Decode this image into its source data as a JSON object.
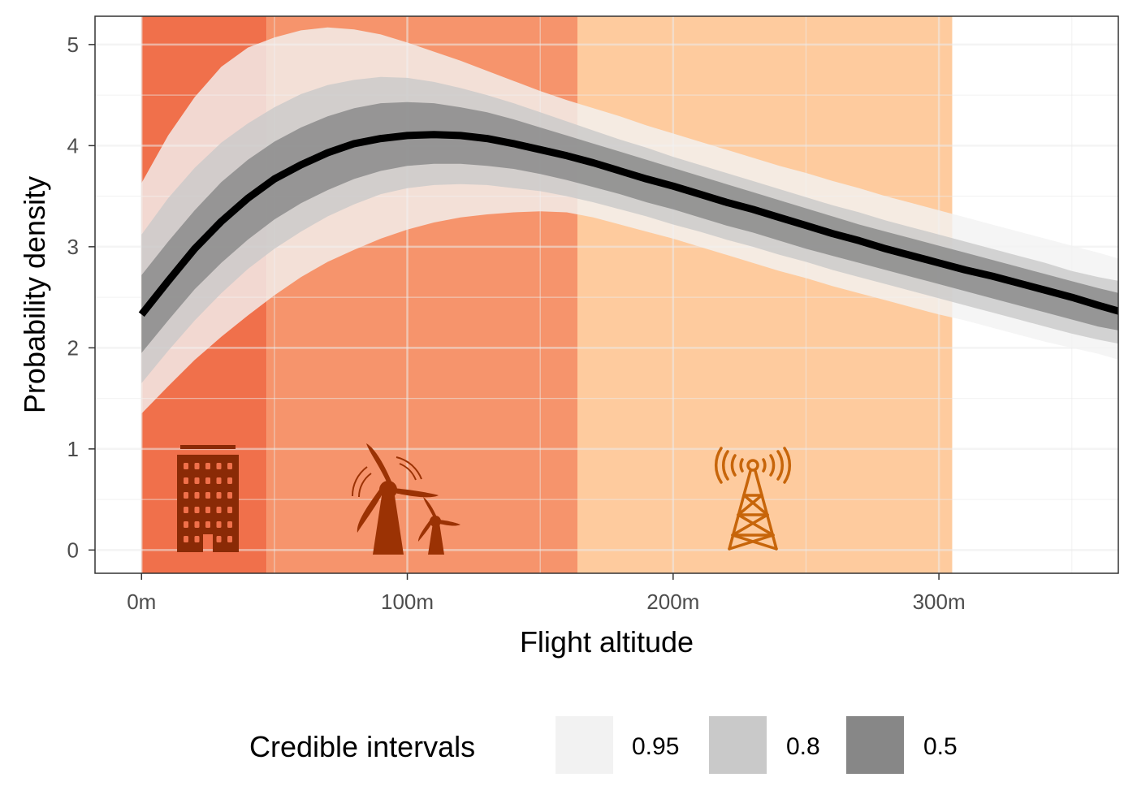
{
  "chart_data": {
    "type": "area",
    "xlabel": "Flight altitude",
    "ylabel": "Probability density",
    "x_ticks": [
      {
        "value": 0,
        "label": "0m"
      },
      {
        "value": 100,
        "label": "100m"
      },
      {
        "value": 200,
        "label": "200m"
      },
      {
        "value": 300,
        "label": "300m"
      }
    ],
    "y_ticks": [
      {
        "value": 0,
        "label": "0"
      },
      {
        "value": 1,
        "label": "1"
      },
      {
        "value": 2,
        "label": "2"
      },
      {
        "value": 3,
        "label": "3"
      },
      {
        "value": 4,
        "label": "4"
      },
      {
        "value": 5,
        "label": "5"
      }
    ],
    "xlim": [
      -17.5,
      367.5
    ],
    "ylim": [
      -0.23,
      5.28
    ],
    "grid": true,
    "altitude_bands": [
      {
        "name": "buildings",
        "from": 0,
        "to": 47,
        "color": "#f0704b",
        "icon": "building-icon"
      },
      {
        "name": "wind turbines",
        "from": 47,
        "to": 164,
        "color": "#f6946c",
        "icon": "wind-turbine-icon"
      },
      {
        "name": "telecom towers",
        "from": 164,
        "to": 305,
        "color": "#fecb9e",
        "icon": "radio-tower-icon"
      }
    ],
    "x": [
      0,
      10,
      20,
      30,
      40,
      50,
      60,
      70,
      80,
      90,
      100,
      110,
      120,
      130,
      140,
      150,
      160,
      170,
      180,
      190,
      200,
      210,
      220,
      230,
      240,
      250,
      260,
      270,
      280,
      290,
      300,
      310,
      320,
      330,
      340,
      350,
      360,
      368
    ],
    "median": [
      2.33,
      2.66,
      2.98,
      3.25,
      3.48,
      3.67,
      3.81,
      3.93,
      4.02,
      4.07,
      4.1,
      4.11,
      4.1,
      4.07,
      4.02,
      3.96,
      3.9,
      3.83,
      3.75,
      3.67,
      3.6,
      3.52,
      3.44,
      3.37,
      3.29,
      3.21,
      3.13,
      3.06,
      2.98,
      2.91,
      2.84,
      2.77,
      2.71,
      2.64,
      2.57,
      2.5,
      2.42,
      2.36
    ],
    "series": [
      {
        "name": "0.95",
        "lower": [
          1.35,
          1.62,
          1.88,
          2.11,
          2.32,
          2.52,
          2.7,
          2.85,
          2.97,
          3.08,
          3.17,
          3.24,
          3.29,
          3.32,
          3.34,
          3.35,
          3.34,
          3.29,
          3.22,
          3.15,
          3.08,
          3.0,
          2.92,
          2.84,
          2.76,
          2.69,
          2.61,
          2.54,
          2.47,
          2.4,
          2.33,
          2.27,
          2.2,
          2.13,
          2.06,
          2.0,
          1.94,
          1.88
        ],
        "upper": [
          3.63,
          4.1,
          4.48,
          4.78,
          4.97,
          5.07,
          5.14,
          5.17,
          5.15,
          5.1,
          5.02,
          4.93,
          4.84,
          4.74,
          4.64,
          4.54,
          4.45,
          4.37,
          4.29,
          4.2,
          4.12,
          4.04,
          3.96,
          3.88,
          3.8,
          3.73,
          3.65,
          3.58,
          3.5,
          3.43,
          3.36,
          3.29,
          3.22,
          3.15,
          3.08,
          3.01,
          2.94,
          2.88
        ]
      },
      {
        "name": "0.8",
        "lower": [
          1.65,
          1.97,
          2.27,
          2.54,
          2.78,
          2.98,
          3.15,
          3.3,
          3.42,
          3.52,
          3.58,
          3.61,
          3.62,
          3.61,
          3.58,
          3.55,
          3.5,
          3.44,
          3.37,
          3.3,
          3.22,
          3.15,
          3.07,
          3.0,
          2.92,
          2.85,
          2.77,
          2.7,
          2.63,
          2.56,
          2.49,
          2.42,
          2.35,
          2.28,
          2.21,
          2.14,
          2.08,
          2.04
        ],
        "upper": [
          3.12,
          3.48,
          3.78,
          4.03,
          4.22,
          4.38,
          4.51,
          4.6,
          4.65,
          4.68,
          4.67,
          4.63,
          4.57,
          4.5,
          4.42,
          4.33,
          4.24,
          4.15,
          4.06,
          3.98,
          3.89,
          3.81,
          3.73,
          3.65,
          3.57,
          3.49,
          3.41,
          3.34,
          3.26,
          3.19,
          3.12,
          3.05,
          2.98,
          2.91,
          2.84,
          2.76,
          2.7,
          2.66
        ]
      },
      {
        "name": "0.5",
        "lower": [
          1.95,
          2.27,
          2.58,
          2.84,
          3.07,
          3.27,
          3.43,
          3.56,
          3.67,
          3.75,
          3.8,
          3.82,
          3.82,
          3.8,
          3.77,
          3.72,
          3.66,
          3.59,
          3.52,
          3.44,
          3.37,
          3.29,
          3.21,
          3.14,
          3.06,
          2.98,
          2.91,
          2.84,
          2.77,
          2.7,
          2.63,
          2.56,
          2.49,
          2.42,
          2.35,
          2.28,
          2.21,
          2.17
        ],
        "upper": [
          2.72,
          3.05,
          3.36,
          3.64,
          3.86,
          4.04,
          4.18,
          4.29,
          4.37,
          4.42,
          4.43,
          4.42,
          4.38,
          4.33,
          4.26,
          4.18,
          4.1,
          4.02,
          3.94,
          3.86,
          3.78,
          3.7,
          3.62,
          3.54,
          3.46,
          3.38,
          3.3,
          3.22,
          3.15,
          3.08,
          3.01,
          2.94,
          2.87,
          2.8,
          2.73,
          2.66,
          2.59,
          2.54
        ]
      }
    ],
    "band_colors": {
      "0.95": "#f2f2f2",
      "0.8": "#c9c9c9",
      "0.5": "#878787"
    },
    "band_opacity": 0.8,
    "legend": {
      "title": "Credible intervals",
      "position": "bottom",
      "items": [
        {
          "label": "0.95",
          "color": "#f2f2f2"
        },
        {
          "label": "0.8",
          "color": "#c9c9c9"
        },
        {
          "label": "0.5",
          "color": "#878787"
        }
      ]
    }
  }
}
